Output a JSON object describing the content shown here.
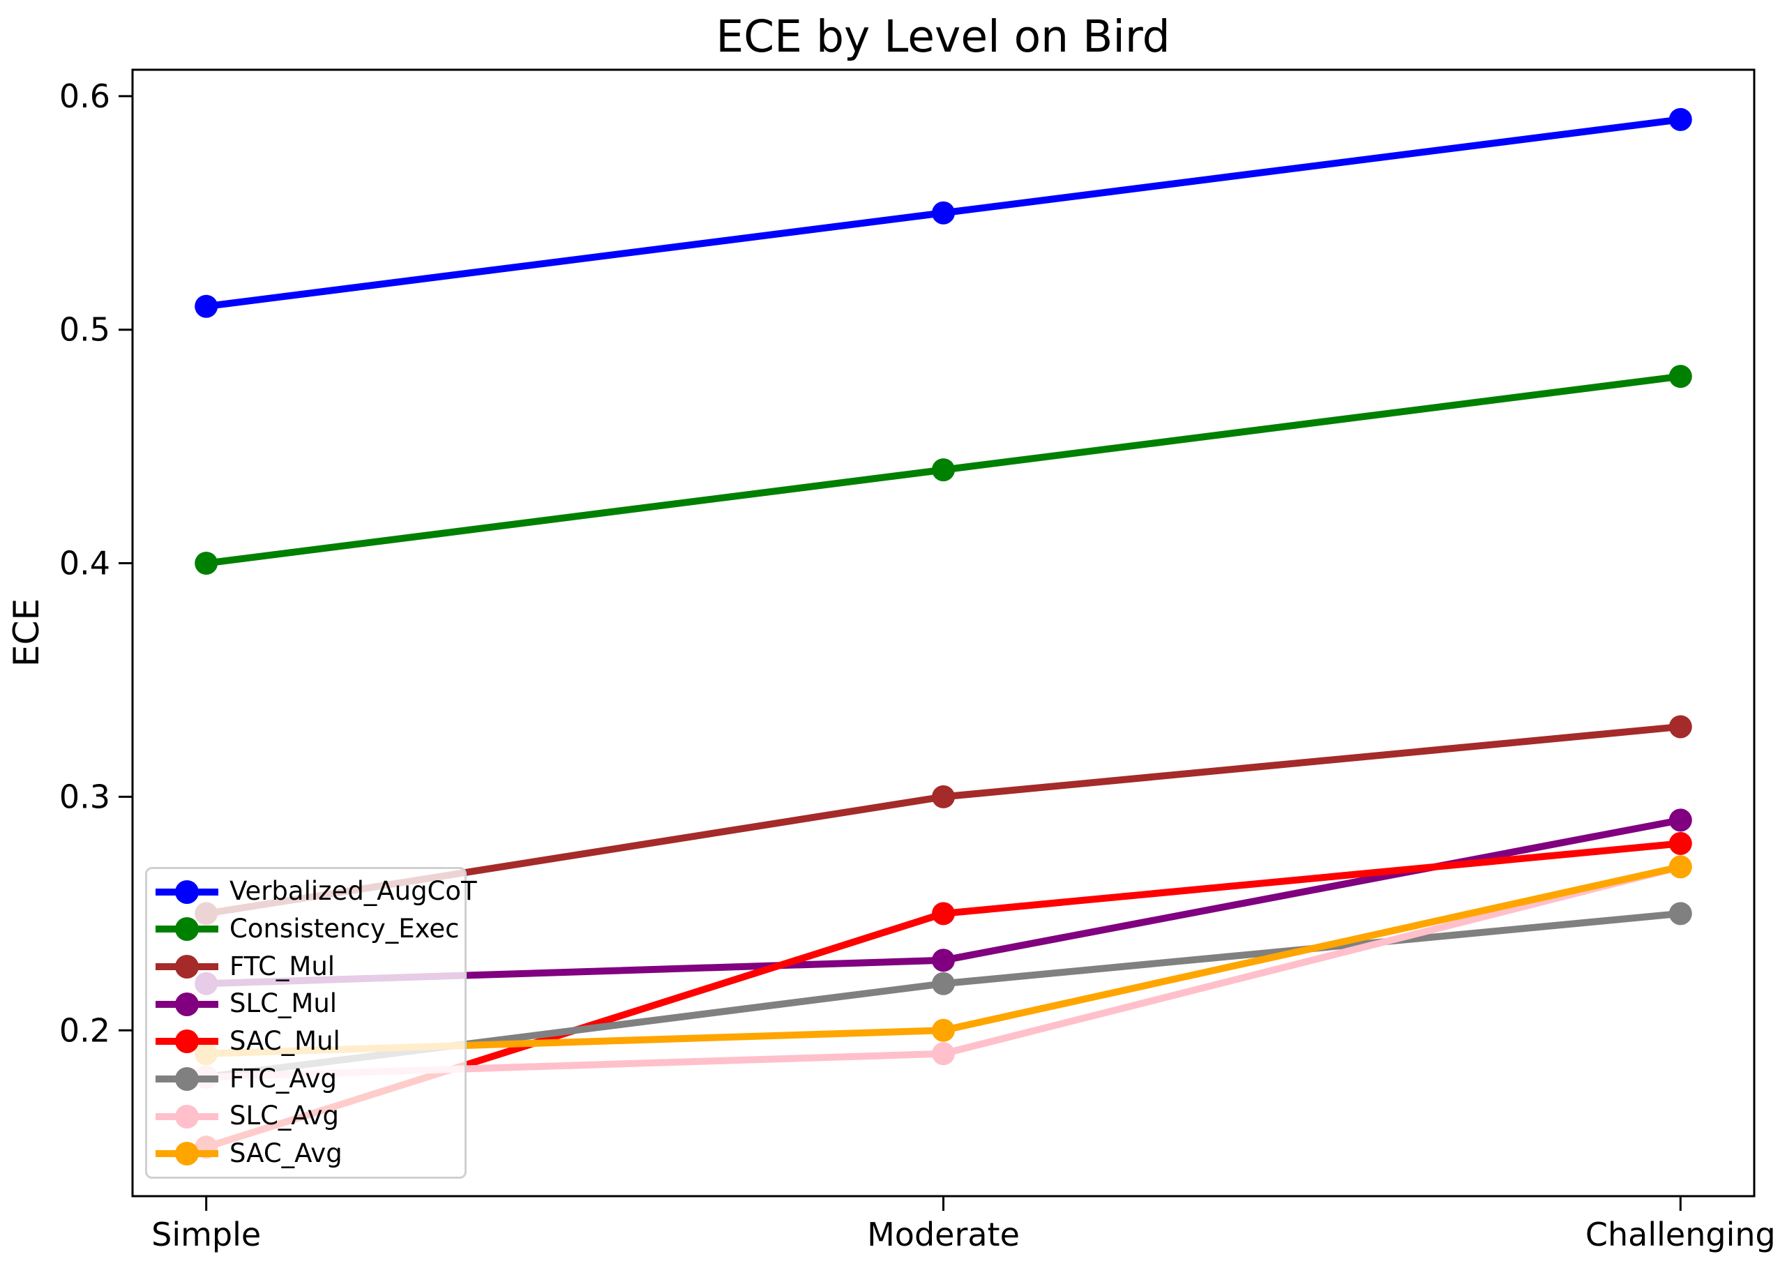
{
  "chart_data": {
    "type": "line",
    "title": "ECE by Level on Bird",
    "xlabel": "",
    "ylabel": "ECE",
    "categories": [
      "Simple",
      "Moderate",
      "Challenging"
    ],
    "series": [
      {
        "name": "Verbalized_AugCoT",
        "color": "#0000ff",
        "values": [
          0.51,
          0.55,
          0.59
        ]
      },
      {
        "name": "Consistency_Exec",
        "color": "#008000",
        "values": [
          0.4,
          0.44,
          0.48
        ]
      },
      {
        "name": "FTC_Mul",
        "color": "#a52a2a",
        "values": [
          0.25,
          0.3,
          0.33
        ]
      },
      {
        "name": "SLC_Mul",
        "color": "#800080",
        "values": [
          0.22,
          0.23,
          0.29
        ]
      },
      {
        "name": "SAC_Mul",
        "color": "#ff0000",
        "values": [
          0.15,
          0.25,
          0.28
        ]
      },
      {
        "name": "FTC_Avg",
        "color": "#808080",
        "values": [
          0.18,
          0.22,
          0.25
        ]
      },
      {
        "name": "SLC_Avg",
        "color": "#ffc0cb",
        "values": [
          0.18,
          0.19,
          0.27
        ]
      },
      {
        "name": "SAC_Avg",
        "color": "#ffa500",
        "values": [
          0.19,
          0.2,
          0.27
        ]
      }
    ],
    "y_ticks": [
      {
        "value": 0.2,
        "label": "0.2"
      },
      {
        "value": 0.3,
        "label": "0.3"
      },
      {
        "value": 0.4,
        "label": "0.4"
      },
      {
        "value": 0.5,
        "label": "0.5"
      },
      {
        "value": 0.6,
        "label": "0.6"
      }
    ],
    "ylim": [
      0.129,
      0.6113
    ],
    "grid": false,
    "legend_position": "lower left",
    "marker": "circle",
    "line_color_axis": "#000000"
  }
}
